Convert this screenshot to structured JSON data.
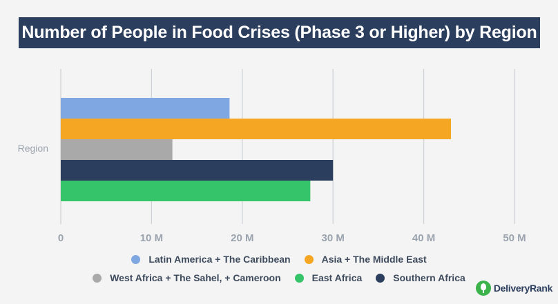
{
  "title": "Number of People in Food Crises (Phase 3 or Higher) by Region",
  "logo": {
    "text": "DeliveryRank",
    "icon": "delivery-rank-logo-icon"
  },
  "colors": {
    "background": "#f4f4f4",
    "title_bar": "#2c3e5e",
    "grid": "#cfd3d8",
    "tick_text": "#9aa3ad"
  },
  "chart_data": {
    "type": "bar",
    "orientation": "horizontal",
    "categories": [
      "Region"
    ],
    "ylabel": "Region",
    "xlim": [
      0,
      50000000
    ],
    "x_ticks": [
      0,
      10000000,
      20000000,
      30000000,
      40000000,
      50000000
    ],
    "x_tick_labels": [
      "0",
      "10 M",
      "20 M",
      "30 M",
      "40 M",
      "50 M"
    ],
    "grid": true,
    "legend_position": "bottom",
    "series": [
      {
        "name": "Latin America + The Caribbean",
        "values": [
          18600000
        ],
        "color": "#7fa7e1"
      },
      {
        "name": "Asia + The Middle East",
        "values": [
          43000000
        ],
        "color": "#f5a623"
      },
      {
        "name": "West Africa + The Sahel, + Cameroon",
        "values": [
          12300000
        ],
        "color": "#a9a9a9"
      },
      {
        "name": "Southern Africa",
        "values": [
          30000000
        ],
        "color": "#2c3e5e"
      },
      {
        "name": "East Africa",
        "values": [
          27500000
        ],
        "color": "#36c46a"
      }
    ],
    "legend_rows": [
      [
        "Latin America + The Caribbean",
        "Asia + The Middle East"
      ],
      [
        "West Africa + The Sahel, + Cameroon",
        "East Africa",
        "Southern Africa"
      ]
    ]
  }
}
